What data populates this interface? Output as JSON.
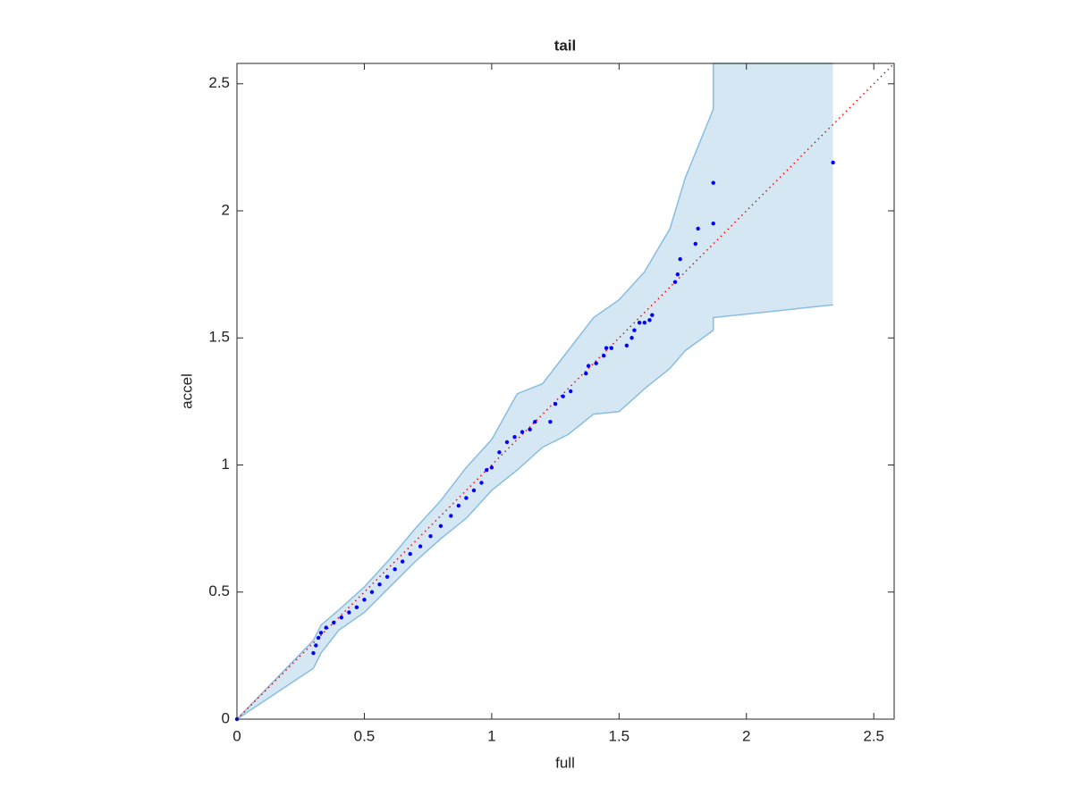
{
  "chart_data": {
    "type": "scatter",
    "title": "tail",
    "xlabel": "full",
    "ylabel": "accel",
    "xlim": [
      0,
      2.58
    ],
    "ylim": [
      0,
      2.58
    ],
    "xticks": [
      0,
      0.5,
      1,
      1.5,
      2,
      2.5
    ],
    "yticks": [
      0,
      0.5,
      1,
      1.5,
      2,
      2.5
    ],
    "grid": false,
    "band": {
      "fill": "#d6e7f4",
      "color": "#88bde0",
      "x": [
        0,
        0.3,
        0.33,
        0.4,
        0.5,
        0.6,
        0.7,
        0.8,
        0.9,
        1.0,
        1.1,
        1.2,
        1.3,
        1.4,
        1.5,
        1.6,
        1.7,
        1.76,
        1.87,
        1.87,
        2.34
      ],
      "upper": [
        0,
        0.31,
        0.37,
        0.43,
        0.52,
        0.63,
        0.75,
        0.86,
        0.99,
        1.1,
        1.28,
        1.32,
        1.45,
        1.58,
        1.65,
        1.76,
        1.93,
        2.13,
        2.4,
        2.58,
        2.58
      ],
      "lower": [
        0,
        0.2,
        0.26,
        0.35,
        0.42,
        0.52,
        0.62,
        0.71,
        0.79,
        0.9,
        0.98,
        1.07,
        1.12,
        1.2,
        1.21,
        1.3,
        1.38,
        1.45,
        1.53,
        1.58,
        1.63
      ]
    },
    "reference_line": {
      "color": "#ff0000",
      "x": [
        0,
        2.58
      ],
      "values": [
        0,
        2.58
      ]
    },
    "points": {
      "color": "#0000ff",
      "x": [
        0,
        0.3,
        0.31,
        0.32,
        0.33,
        0.35,
        0.38,
        0.41,
        0.44,
        0.47,
        0.5,
        0.53,
        0.56,
        0.59,
        0.62,
        0.65,
        0.68,
        0.72,
        0.76,
        0.8,
        0.84,
        0.87,
        0.9,
        0.93,
        0.96,
        0.98,
        1.0,
        1.03,
        1.06,
        1.09,
        1.12,
        1.15,
        1.17,
        1.23,
        1.25,
        1.28,
        1.31,
        1.37,
        1.38,
        1.41,
        1.44,
        1.45,
        1.47,
        1.53,
        1.55,
        1.56,
        1.58,
        1.6,
        1.62,
        1.63,
        1.72,
        1.73,
        1.74,
        1.8,
        1.81,
        1.87,
        1.87,
        2.34
      ],
      "values": [
        0,
        0.26,
        0.29,
        0.32,
        0.34,
        0.36,
        0.38,
        0.4,
        0.42,
        0.44,
        0.47,
        0.5,
        0.53,
        0.56,
        0.59,
        0.62,
        0.65,
        0.68,
        0.72,
        0.76,
        0.8,
        0.84,
        0.87,
        0.9,
        0.93,
        0.98,
        0.99,
        1.05,
        1.09,
        1.11,
        1.13,
        1.14,
        1.17,
        1.17,
        1.24,
        1.27,
        1.29,
        1.36,
        1.39,
        1.4,
        1.43,
        1.46,
        1.46,
        1.47,
        1.5,
        1.53,
        1.56,
        1.56,
        1.57,
        1.59,
        1.72,
        1.75,
        1.81,
        1.87,
        1.93,
        1.95,
        2.11,
        2.19
      ]
    }
  }
}
